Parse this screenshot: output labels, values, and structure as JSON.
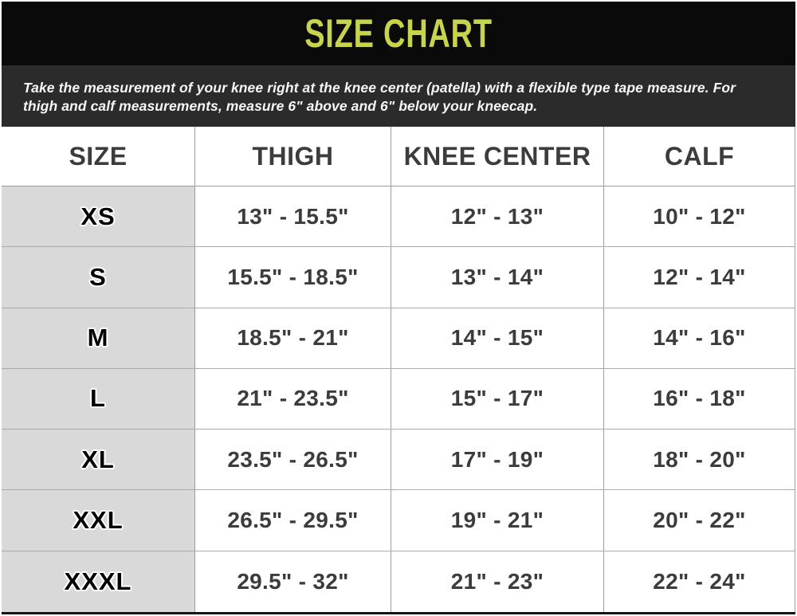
{
  "header": {
    "title": "SIZE CHART",
    "accent_color": "#c8d44c",
    "background_color": "#0a0a0a"
  },
  "instructions": {
    "text": "Take the measurement of your knee right at the knee center (patella) with a flexible type tape measure. For thigh and calf measurements, measure 6\" above and 6\" below your kneecap.",
    "background_color": "#2b2b2b"
  },
  "table": {
    "columns": [
      "SIZE",
      "THIGH",
      "KNEE CENTER",
      "CALF"
    ],
    "rows": [
      {
        "size": "XS",
        "thigh": "13\" - 15.5\"",
        "knee_center": "12\" - 13\"",
        "calf": "10\" - 12\""
      },
      {
        "size": "S",
        "thigh": "15.5\" - 18.5\"",
        "knee_center": "13\" - 14\"",
        "calf": "12\" - 14\""
      },
      {
        "size": "M",
        "thigh": "18.5\" - 21\"",
        "knee_center": "14\" - 15\"",
        "calf": "14\" - 16\""
      },
      {
        "size": "L",
        "thigh": "21\" - 23.5\"",
        "knee_center": "15\" - 17\"",
        "calf": "16\" - 18\""
      },
      {
        "size": "XL",
        "thigh": "23.5\" - 26.5\"",
        "knee_center": "17\" - 19\"",
        "calf": "18\" - 20\""
      },
      {
        "size": "XXL",
        "thigh": "26.5\" - 29.5\"",
        "knee_center": "19\" - 21\"",
        "calf": "20\" - 22\""
      },
      {
        "size": "XXXL",
        "thigh": "29.5\" - 32\"",
        "knee_center": "21\" - 23\"",
        "calf": "22\" - 24\""
      }
    ],
    "size_column_background": "#d9d9d9",
    "grid_line_color": "#9b9b9b"
  }
}
